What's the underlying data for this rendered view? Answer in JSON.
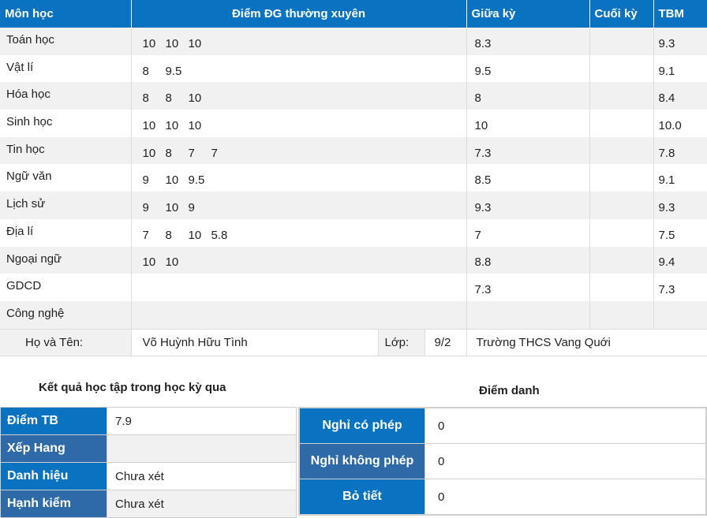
{
  "headers": {
    "subject": "Môn học",
    "regular": "Điểm ĐG thường xuyên",
    "midterm": "Giữa kỳ",
    "final": "Cuối kỳ",
    "average": "TBM"
  },
  "subjects": [
    {
      "name": "Toán học",
      "scores": [
        "10",
        "10",
        "10"
      ],
      "midterm": "8.3",
      "final": "",
      "average": "9.3"
    },
    {
      "name": "Vật lí",
      "scores": [
        "8",
        "9.5"
      ],
      "midterm": "9.5",
      "final": "",
      "average": "9.1"
    },
    {
      "name": "Hóa học",
      "scores": [
        "8",
        "8",
        "10"
      ],
      "midterm": "8",
      "final": "",
      "average": "8.4"
    },
    {
      "name": "Sinh học",
      "scores": [
        "10",
        "10",
        "10"
      ],
      "midterm": "10",
      "final": "",
      "average": "10.0"
    },
    {
      "name": "Tin học",
      "scores": [
        "10",
        "8",
        "7",
        "7"
      ],
      "midterm": "7.3",
      "final": "",
      "average": "7.8"
    },
    {
      "name": "Ngữ văn",
      "scores": [
        "9",
        "10",
        "9.5"
      ],
      "midterm": "8.5",
      "final": "",
      "average": "9.1"
    },
    {
      "name": "Lịch sử",
      "scores": [
        "9",
        "10",
        "9"
      ],
      "midterm": "9.3",
      "final": "",
      "average": "9.3"
    },
    {
      "name": "Địa lí",
      "scores": [
        "7",
        "8",
        "10",
        "5.8"
      ],
      "midterm": "7",
      "final": "",
      "average": "7.5"
    },
    {
      "name": "Ngoại ngữ",
      "scores": [
        "10",
        "10"
      ],
      "midterm": "8.8",
      "final": "",
      "average": "9.4"
    },
    {
      "name": "GDCD",
      "scores": [],
      "midterm": "7.3",
      "final": "",
      "average": "7.3"
    },
    {
      "name": "Công nghệ",
      "scores": [],
      "midterm": "",
      "final": "",
      "average": ""
    }
  ],
  "student": {
    "name_label": "Họ và Tên:",
    "name": "Võ Huỳnh Hữu Tình",
    "class_label": "Lớp:",
    "class": "9/2",
    "school": "Trường THCS Vang Quới"
  },
  "results": {
    "title": "Kết quả học tập trong học kỳ  qua",
    "gpa_label": "Điểm TB",
    "gpa": "7.9",
    "rank_label": "Xếp Hang",
    "rank": "",
    "honor_label": "Danh hiệu",
    "honor": "Chưa xét",
    "conduct_label": "Hạnh kiểm",
    "conduct": "Chưa xét"
  },
  "attendance": {
    "title": "Điểm danh",
    "excused_label": "Nghỉ có phép",
    "excused": "0",
    "unexcused_label": "Nghỉ không phép",
    "unexcused": "0",
    "skipped_label": "Bỏ tiết",
    "skipped": "0"
  },
  "colors": {
    "header_blue": "#0a73c1",
    "label_dark_blue": "#2e6aa8",
    "row_stripe": "#f1f1f1"
  }
}
